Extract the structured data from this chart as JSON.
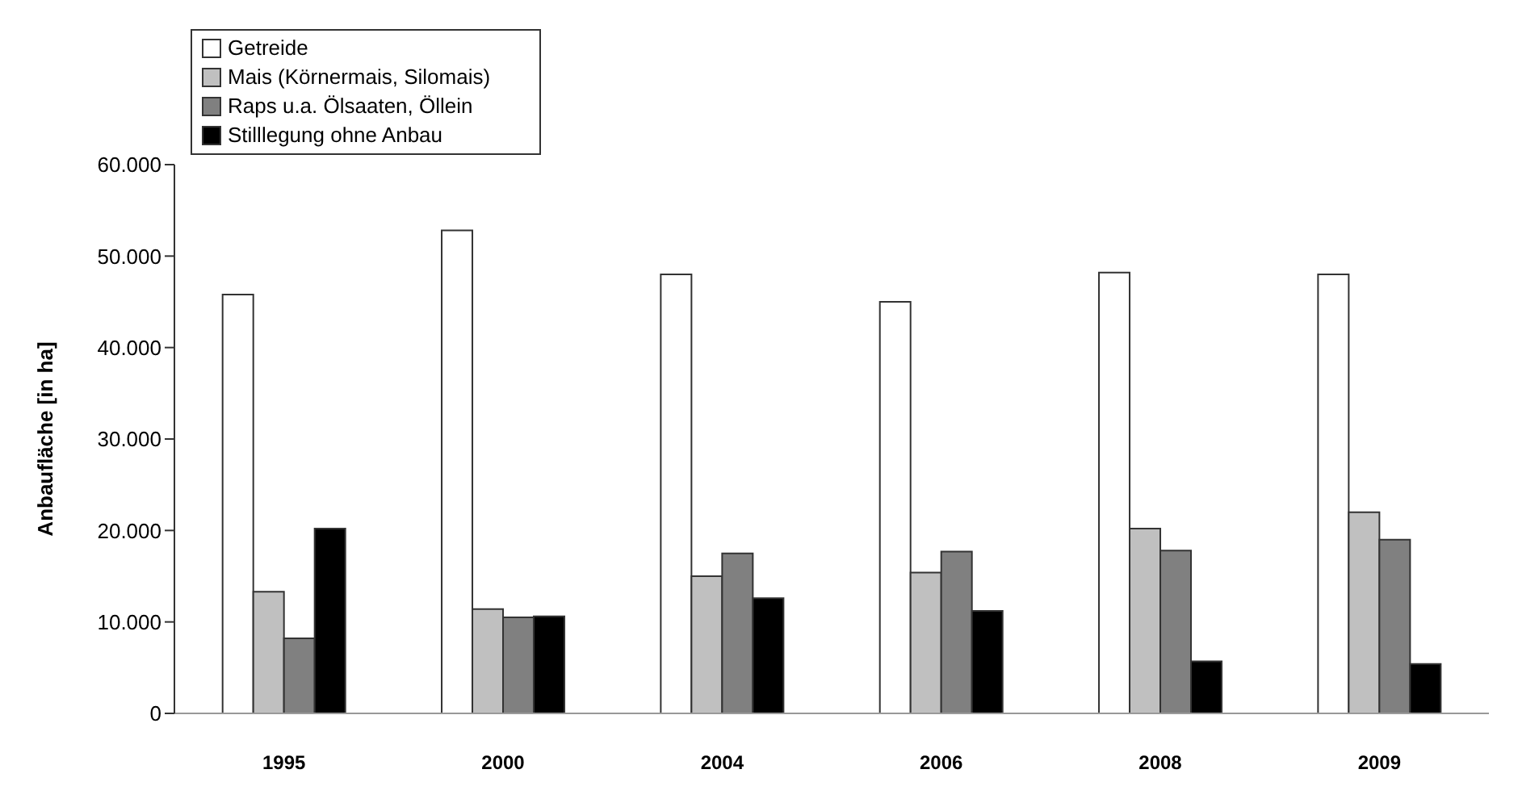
{
  "chart_data": {
    "type": "bar",
    "ylabel": "Anbaufläche [in ha]",
    "categories": [
      "1995",
      "2000",
      "2004",
      "2006",
      "2008",
      "2009"
    ],
    "series": [
      {
        "name": "Getreide",
        "color": "#ffffff",
        "values": [
          45800,
          52800,
          48000,
          45000,
          48200,
          48000
        ]
      },
      {
        "name": "Mais (Körnermais, Silomais)",
        "color": "#c0c0c0",
        "values": [
          13300,
          11400,
          15000,
          15400,
          20200,
          22000
        ]
      },
      {
        "name": "Raps u.a. Ölsaaten, Öllein",
        "color": "#808080",
        "values": [
          8200,
          10500,
          17500,
          17700,
          17800,
          19000
        ]
      },
      {
        "name": "Stilllegung ohne Anbau",
        "color": "#000000",
        "values": [
          20200,
          10600,
          12600,
          11200,
          5700,
          5400
        ]
      }
    ],
    "ylim": [
      0,
      60000
    ],
    "yticks": [
      0,
      {
        "value": 10000,
        "label": "10.000"
      },
      {
        "value": 20000,
        "label": "20.000"
      },
      {
        "value": 30000,
        "label": "30.000"
      },
      {
        "value": 40000,
        "label": "40.000"
      },
      {
        "value": 50000,
        "label": "50.000"
      },
      {
        "value": 60000,
        "label": "60.000"
      }
    ],
    "grid": false,
    "legend": "top left"
  }
}
